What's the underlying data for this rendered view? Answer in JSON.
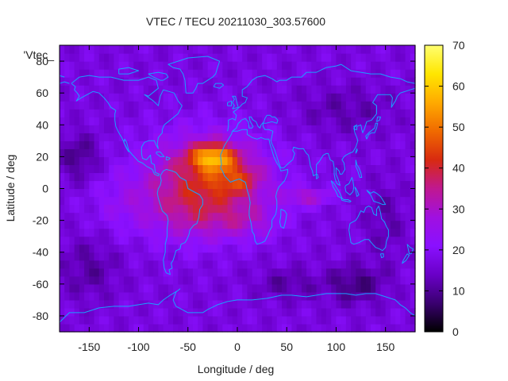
{
  "chart_data": {
    "type": "heatmap",
    "title": "VTEC / TECU 20211030_303.57600",
    "xlabel": "Longitude / deg",
    "ylabel": "Latitude / deg",
    "key_label": "'Vtec_",
    "xlim": [
      -180,
      180
    ],
    "ylim": [
      -90,
      90
    ],
    "x_ticks": [
      -150,
      -100,
      -50,
      0,
      50,
      100,
      150
    ],
    "y_ticks": [
      -80,
      -60,
      -40,
      -20,
      0,
      20,
      40,
      60,
      80
    ],
    "colorbar": {
      "min": 0,
      "max": 70,
      "ticks": [
        0,
        10,
        20,
        30,
        40,
        50,
        60,
        70
      ]
    },
    "colormap": [
      "#000000",
      "#3a0070",
      "#6a00c8",
      "#8a10ff",
      "#a010e0",
      "#c01890",
      "#d82a10",
      "#f06a00",
      "#ffaa00",
      "#ffe600",
      "#ffff70"
    ],
    "coastline_color": "#1aa0ff",
    "grid_step_deg": 5,
    "field_model": {
      "background": 17,
      "blobs": [
        {
          "lon": -30,
          "lat": 10,
          "amp": 20,
          "sx": 60,
          "sy": 25
        },
        {
          "lon": -25,
          "lat": 20,
          "amp": 26,
          "sx": 22,
          "sy": 8
        },
        {
          "lon": 0,
          "lat": 5,
          "amp": 12,
          "sx": 25,
          "sy": 10
        },
        {
          "lon": -45,
          "lat": -15,
          "amp": 12,
          "sx": 40,
          "sy": 20
        },
        {
          "lon": 10,
          "lat": -20,
          "amp": 10,
          "sx": 35,
          "sy": 12
        },
        {
          "lon": 70,
          "lat": -5,
          "amp": 12,
          "sx": 25,
          "sy": 6
        },
        {
          "lon": -110,
          "lat": -10,
          "amp": 6,
          "sx": 40,
          "sy": 20
        },
        {
          "lon": -160,
          "lat": 20,
          "amp": -8,
          "sx": 20,
          "sy": 15
        },
        {
          "lon": 110,
          "lat": 50,
          "amp": -5,
          "sx": 50,
          "sy": 15
        },
        {
          "lon": 120,
          "lat": -60,
          "amp": -9,
          "sx": 30,
          "sy": 12
        },
        {
          "lon": -150,
          "lat": -50,
          "amp": -6,
          "sx": 30,
          "sy": 20
        },
        {
          "lon": 150,
          "lat": -20,
          "amp": -5,
          "sx": 20,
          "sy": 25
        },
        {
          "lon": 50,
          "lat": -60,
          "amp": -6,
          "sx": 30,
          "sy": 10
        }
      ]
    }
  }
}
